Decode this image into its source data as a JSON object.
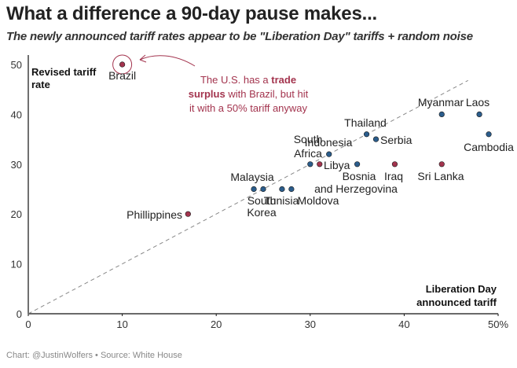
{
  "header": {
    "title": "What a difference a 90-day pause makes...",
    "subtitle": "The newly announced tariff rates appear to be \"Liberation Day\" tariffs + random noise"
  },
  "footer": {
    "source": "Chart: @JustinWolfers • Source: White House"
  },
  "colors": {
    "blue": "#2b5d8c",
    "red": "#a3344e",
    "diagonal": "#888888"
  },
  "chart_data": {
    "type": "scatter",
    "title": "What a difference a 90-day pause makes...",
    "xlabel": [
      "Liberation Day",
      "announced tariff"
    ],
    "ylabel": [
      "Revised tariff",
      "rate"
    ],
    "xlim": [
      0,
      50
    ],
    "ylim": [
      0,
      50
    ],
    "x_ticks": [
      0,
      10,
      20,
      30,
      40,
      50
    ],
    "x_tick_labels": [
      "0",
      "10",
      "20",
      "30",
      "40",
      "50%"
    ],
    "y_ticks": [
      0,
      10,
      20,
      30,
      40,
      50
    ],
    "y_tick_labels": [
      "0",
      "10",
      "20",
      "30",
      "40",
      "50"
    ],
    "reference_line": "y = x",
    "points": [
      {
        "x": 10,
        "y": 50,
        "color": "red",
        "label": "Brazil",
        "circled": true
      },
      {
        "x": 17,
        "y": 20,
        "color": "red",
        "label": "Phillippines"
      },
      {
        "x": 24,
        "y": 25,
        "color": "blue",
        "label": "Malaysia"
      },
      {
        "x": 25,
        "y": 25,
        "color": "blue",
        "label": ""
      },
      {
        "x": 27,
        "y": 25,
        "color": "blue",
        "label": ""
      },
      {
        "x": 28,
        "y": 25,
        "color": "blue",
        "label": ""
      },
      {
        "x": 30,
        "y": 30,
        "color": "blue",
        "label": ""
      },
      {
        "x": 31,
        "y": 30,
        "color": "red",
        "label": "Libya"
      },
      {
        "x": 32,
        "y": 32,
        "color": "blue",
        "label": "Indonesia"
      },
      {
        "x": 35,
        "y": 30,
        "color": "blue",
        "label": ""
      },
      {
        "x": 36,
        "y": 36,
        "color": "blue",
        "label": "Thailand"
      },
      {
        "x": 37,
        "y": 35,
        "color": "blue",
        "label": "Serbia"
      },
      {
        "x": 39,
        "y": 30,
        "color": "red",
        "label": "Iraq"
      },
      {
        "x": 44,
        "y": 30,
        "color": "red",
        "label": "Sri Lanka"
      },
      {
        "x": 44,
        "y": 40,
        "color": "blue",
        "label": "Myanmar"
      },
      {
        "x": 48,
        "y": 40,
        "color": "blue",
        "label": "Laos"
      },
      {
        "x": 49,
        "y": 36,
        "color": "blue",
        "label": "Cambodia"
      }
    ],
    "extra_labels": [
      {
        "text": "South",
        "near": "30,30"
      },
      {
        "text": "Africa",
        "near": "30,30"
      },
      {
        "text": "Bosnia",
        "near": "35,30"
      },
      {
        "text": "and Herzegovina",
        "near": "35,30"
      },
      {
        "text": "South",
        "near": "25,25"
      },
      {
        "text": "Korea",
        "near": "25,25"
      },
      {
        "text": "Tunisia",
        "near": "27,25"
      },
      {
        "text": "Moldova",
        "near": "28,25"
      }
    ],
    "annotation": {
      "segments": [
        {
          "line": 1,
          "text": "The U.S. has a ",
          "bold": false
        },
        {
          "line": 1,
          "text": "trade",
          "bold": true
        },
        {
          "line": 2,
          "text": "surplus",
          "bold": true
        },
        {
          "line": 2,
          "text": " with Brazil, but hit",
          "bold": false
        },
        {
          "line": 3,
          "text": "it with a 50% tariff anyway",
          "bold": false
        }
      ]
    }
  }
}
